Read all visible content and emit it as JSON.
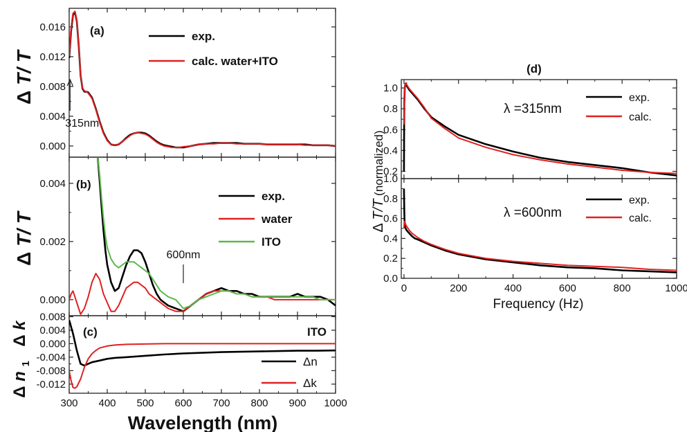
{
  "figure": {
    "left_ylabel": {
      "delta": "Δ",
      "italic": "T/ T"
    },
    "c_ylabel_k": {
      "delta": "Δ",
      "italic": "k"
    },
    "c_ylabel_n": {
      "delta": "Δ",
      "italic": "n",
      "sub": "1"
    },
    "right_ylabel": {
      "delta": "Δ",
      "italic": "T/T",
      "rest": "(normalized)"
    },
    "left_xlabel": "Wavelength (nm)",
    "right_xlabel": "Frequency (Hz)"
  },
  "chart_data": [
    {
      "panel": "(a)",
      "type": "line",
      "xlim": [
        300,
        1000
      ],
      "ylim": [
        -0.0015,
        0.0185
      ],
      "yticks": [
        "0.016",
        "0.012",
        "0.008",
        "0.004",
        "0.000"
      ],
      "annotation": {
        "text": "315nm",
        "x": 315
      },
      "legend_position": "top-right",
      "series": [
        {
          "name": "exp.",
          "color": "#000000",
          "x": [
            300,
            305,
            310,
            315,
            320,
            325,
            330,
            335,
            340,
            345,
            350,
            360,
            370,
            380,
            390,
            400,
            410,
            420,
            430,
            440,
            450,
            460,
            470,
            480,
            490,
            500,
            510,
            520,
            530,
            540,
            550,
            560,
            570,
            580,
            590,
            600,
            620,
            640,
            660,
            680,
            700,
            720,
            740,
            760,
            780,
            800,
            820,
            840,
            860,
            880,
            900,
            920,
            940,
            960,
            980,
            1000
          ],
          "y": [
            0.0118,
            0.0155,
            0.0176,
            0.018,
            0.0168,
            0.0135,
            0.0095,
            0.0077,
            0.0073,
            0.0073,
            0.0072,
            0.0065,
            0.005,
            0.0033,
            0.0018,
            0.0008,
            0.0002,
            0.0001,
            0.0002,
            0.0006,
            0.0011,
            0.0015,
            0.0017,
            0.0018,
            0.0018,
            0.0017,
            0.0014,
            0.001,
            0.0006,
            0.0003,
            0.0001,
            0.0,
            -0.0001,
            -0.0002,
            -0.0002,
            -0.0002,
            0.0,
            0.0002,
            0.0003,
            0.0004,
            0.0004,
            0.0004,
            0.0004,
            0.0003,
            0.0003,
            0.0003,
            0.0002,
            0.0002,
            0.0002,
            0.0002,
            0.0002,
            0.0002,
            0.0001,
            0.0001,
            0.0001,
            0.0
          ]
        },
        {
          "name": "calc. water+ITO",
          "color": "#e02020",
          "x": [
            300,
            305,
            310,
            315,
            320,
            325,
            330,
            335,
            340,
            345,
            350,
            360,
            370,
            380,
            390,
            400,
            410,
            420,
            430,
            440,
            450,
            460,
            470,
            480,
            490,
            500,
            510,
            520,
            530,
            540,
            550,
            560,
            570,
            580,
            590,
            600,
            620,
            640,
            660,
            680,
            700,
            720,
            740,
            760,
            780,
            800,
            820,
            840,
            860,
            880,
            900,
            920,
            940,
            960,
            980,
            1000
          ],
          "y": [
            0.0121,
            0.0158,
            0.0178,
            0.0181,
            0.0169,
            0.0136,
            0.0096,
            0.0078,
            0.0074,
            0.0073,
            0.0071,
            0.0064,
            0.0049,
            0.0032,
            0.0017,
            0.0007,
            0.0002,
            0.0001,
            0.0002,
            0.0006,
            0.001,
            0.0014,
            0.0017,
            0.0018,
            0.0017,
            0.0016,
            0.0013,
            0.0009,
            0.0005,
            0.0002,
            0.0,
            -0.0001,
            -0.0002,
            -0.0002,
            -0.0002,
            -0.0001,
            0.0,
            0.0002,
            0.0003,
            0.0003,
            0.0004,
            0.0004,
            0.0003,
            0.0003,
            0.0003,
            0.0003,
            0.0002,
            0.0002,
            0.0002,
            0.0002,
            0.0002,
            0.0001,
            0.0001,
            0.0001,
            0.0001,
            0.0
          ]
        }
      ]
    },
    {
      "panel": "(b)",
      "type": "line",
      "xlim": [
        300,
        1000
      ],
      "ylim": [
        -0.00055,
        0.0049
      ],
      "yticks": [
        "0.004",
        "0.002",
        "0.000"
      ],
      "annotation": {
        "text": "600nm",
        "x": 600
      },
      "legend_position": "right",
      "series": [
        {
          "name": "exp.",
          "color": "#000000",
          "x": [
            375,
            380,
            385,
            390,
            395,
            400,
            410,
            420,
            430,
            440,
            450,
            460,
            470,
            480,
            490,
            500,
            510,
            520,
            530,
            540,
            550,
            560,
            580,
            600,
            620,
            640,
            660,
            680,
            700,
            720,
            740,
            760,
            780,
            800,
            820,
            840,
            860,
            880,
            900,
            920,
            940,
            960,
            980,
            1000
          ],
          "y": [
            0.0049,
            0.0041,
            0.0032,
            0.0024,
            0.0017,
            0.0012,
            0.0006,
            0.0003,
            0.0004,
            0.0008,
            0.0012,
            0.0015,
            0.0017,
            0.0017,
            0.0016,
            0.0013,
            0.0009,
            0.0005,
            0.0002,
            0.0,
            -0.0001,
            -0.0002,
            -0.0003,
            -0.0004,
            -0.0002,
            0.0,
            0.0002,
            0.0003,
            0.0004,
            0.0003,
            0.0003,
            0.0002,
            0.0002,
            0.0001,
            0.0001,
            0.0001,
            0.0001,
            0.0001,
            0.0002,
            0.0001,
            0.0001,
            0.0001,
            0.0,
            -0.0002
          ]
        },
        {
          "name": "water",
          "color": "#e02020",
          "x": [
            300,
            305,
            310,
            320,
            330,
            340,
            350,
            360,
            370,
            380,
            390,
            400,
            410,
            420,
            430,
            440,
            450,
            460,
            470,
            480,
            490,
            500,
            510,
            520,
            530,
            540,
            550,
            560,
            580,
            600,
            620,
            640,
            660,
            680,
            700,
            720,
            740,
            760,
            780,
            800,
            820,
            840,
            860,
            880,
            900,
            920,
            940,
            960,
            980,
            1000
          ],
          "y": [
            0.0,
            0.0002,
            0.0003,
            -0.0001,
            -0.0005,
            -0.0003,
            0.0001,
            0.0006,
            0.0009,
            0.0007,
            0.0002,
            -0.0001,
            -0.0004,
            -0.0004,
            -0.0002,
            0.0001,
            0.0004,
            0.0005,
            0.0006,
            0.0006,
            0.0005,
            0.0004,
            0.0002,
            0.0001,
            0.0,
            -0.0001,
            -0.0002,
            -0.0003,
            -0.0004,
            -0.0004,
            -0.0002,
            0.0,
            0.0002,
            0.0003,
            0.0003,
            0.0003,
            0.0002,
            0.0002,
            0.0001,
            0.0001,
            0.0001,
            0.0,
            0.0,
            0.0,
            0.0,
            0.0,
            0.0,
            0.0,
            0.0,
            0.0
          ]
        },
        {
          "name": "ITO",
          "color": "#5cb84a",
          "x": [
            375,
            380,
            385,
            390,
            395,
            400,
            410,
            420,
            430,
            440,
            450,
            460,
            470,
            480,
            490,
            500,
            510,
            520,
            530,
            540,
            550,
            560,
            580,
            600,
            620,
            640,
            660,
            680,
            700,
            720,
            740,
            760,
            780,
            800,
            820,
            840,
            860,
            880,
            900,
            920,
            940,
            960,
            980,
            1000
          ],
          "y": [
            0.0049,
            0.0043,
            0.0035,
            0.0028,
            0.0022,
            0.0018,
            0.0014,
            0.0012,
            0.0011,
            0.0012,
            0.0013,
            0.0013,
            0.0013,
            0.0012,
            0.0011,
            0.001,
            0.0009,
            0.0007,
            0.0005,
            0.0003,
            0.0002,
            0.0001,
            0.0,
            -0.0003,
            -0.0002,
            0.0,
            0.0001,
            0.0002,
            0.0003,
            0.0003,
            0.0002,
            0.0002,
            0.0001,
            0.0001,
            0.0001,
            0.0001,
            0.0001,
            0.0001,
            0.0001,
            0.0001,
            0.0001,
            0.0,
            0.0,
            0.0
          ]
        }
      ]
    },
    {
      "panel": "(c)",
      "type": "line",
      "subtitle": "ITO",
      "xlim": [
        300,
        1000
      ],
      "ylim": [
        -0.0147,
        0.0083
      ],
      "xticks": [
        "300",
        "400",
        "500",
        "600",
        "700",
        "800",
        "900",
        "1000"
      ],
      "yticks": [
        "0.008",
        "0.004",
        "0.000",
        "-0.004",
        "-0.008",
        "-0.012"
      ],
      "legend_position": "bottom-right",
      "series": [
        {
          "name": "Δn",
          "color": "#000000",
          "x": [
            300,
            310,
            320,
            330,
            340,
            350,
            360,
            380,
            400,
            420,
            450,
            500,
            550,
            600,
            650,
            700,
            750,
            800,
            850,
            900,
            950,
            1000
          ],
          "y": [
            0.007,
            0.003,
            -0.002,
            -0.006,
            -0.0065,
            -0.006,
            -0.0055,
            -0.005,
            -0.0045,
            -0.0042,
            -0.004,
            -0.0036,
            -0.0032,
            -0.0029,
            -0.0027,
            -0.0025,
            -0.0024,
            -0.0023,
            -0.0022,
            -0.0021,
            -0.0021,
            -0.002
          ]
        },
        {
          "name": "Δk",
          "color": "#e02020",
          "x": [
            300,
            305,
            310,
            315,
            320,
            330,
            340,
            350,
            360,
            370,
            380,
            400,
            420,
            450,
            500,
            550,
            600,
            700,
            800,
            900,
            1000
          ],
          "y": [
            -0.008,
            -0.011,
            -0.013,
            -0.0132,
            -0.0128,
            -0.0105,
            -0.007,
            -0.0045,
            -0.003,
            -0.002,
            -0.0013,
            -0.0007,
            -0.0004,
            -0.0002,
            -0.0001,
            0.0,
            0.0,
            0.0,
            0.0,
            0.0,
            0.0
          ]
        }
      ]
    },
    {
      "panel": "(d) λ=315nm",
      "type": "line",
      "title": "(d)",
      "annotation": "λ =315nm",
      "xlim": [
        -10,
        1000
      ],
      "ylim": [
        0.13,
        1.08
      ],
      "yticks": [
        "1.0",
        "0.8",
        "0.6",
        "0.4",
        "0.2"
      ],
      "legend_position": "top-right",
      "series": [
        {
          "name": "exp.",
          "color": "#000000",
          "x": [
            0,
            1,
            3,
            5,
            8,
            10,
            20,
            30,
            40,
            50,
            75,
            100,
            150,
            200,
            300,
            400,
            500,
            600,
            700,
            800,
            900,
            1000
          ],
          "y": [
            0.2,
            0.85,
            1.0,
            1.04,
            1.04,
            1.02,
            0.98,
            0.95,
            0.92,
            0.89,
            0.8,
            0.72,
            0.63,
            0.55,
            0.46,
            0.39,
            0.33,
            0.29,
            0.26,
            0.23,
            0.19,
            0.16
          ]
        },
        {
          "name": "calc.",
          "color": "#e02020",
          "x": [
            0,
            1,
            3,
            5,
            8,
            10,
            20,
            30,
            40,
            50,
            75,
            100,
            150,
            200,
            300,
            400,
            500,
            600,
            700,
            800,
            900,
            1000
          ],
          "y": [
            0.65,
            0.9,
            1.0,
            1.04,
            1.05,
            1.03,
            0.99,
            0.96,
            0.93,
            0.9,
            0.81,
            0.71,
            0.61,
            0.52,
            0.43,
            0.36,
            0.31,
            0.27,
            0.24,
            0.21,
            0.19,
            0.18
          ]
        }
      ]
    },
    {
      "panel": "(d) λ=600nm",
      "type": "line",
      "annotation": "λ =600nm",
      "xlabel": "Frequency (Hz)",
      "xlim": [
        -10,
        1000
      ],
      "ylim": [
        0.0,
        1.0
      ],
      "xticks": [
        "0",
        "200",
        "400",
        "600",
        "800",
        "1000"
      ],
      "yticks": [
        "1.0",
        "0.8",
        "0.6",
        "0.4",
        "0.2",
        "0.0"
      ],
      "legend_position": "top-right",
      "series": [
        {
          "name": "exp.",
          "color": "#000000",
          "x": [
            0,
            1,
            2,
            4,
            6,
            10,
            20,
            30,
            40,
            50,
            75,
            100,
            150,
            200,
            300,
            400,
            500,
            600,
            700,
            800,
            900,
            1000
          ],
          "y": [
            0.9,
            0.7,
            0.58,
            0.52,
            0.5,
            0.48,
            0.45,
            0.42,
            0.4,
            0.39,
            0.36,
            0.33,
            0.28,
            0.24,
            0.19,
            0.16,
            0.13,
            0.11,
            0.1,
            0.08,
            0.07,
            0.06
          ]
        },
        {
          "name": "calc.",
          "color": "#e02020",
          "x": [
            0,
            1,
            2,
            4,
            6,
            10,
            20,
            30,
            40,
            50,
            75,
            100,
            150,
            200,
            300,
            400,
            500,
            600,
            700,
            800,
            900,
            1000
          ],
          "y": [
            0.5,
            0.56,
            0.57,
            0.56,
            0.54,
            0.52,
            0.48,
            0.45,
            0.43,
            0.41,
            0.37,
            0.34,
            0.29,
            0.25,
            0.2,
            0.17,
            0.15,
            0.13,
            0.12,
            0.11,
            0.09,
            0.08
          ]
        }
      ]
    }
  ]
}
